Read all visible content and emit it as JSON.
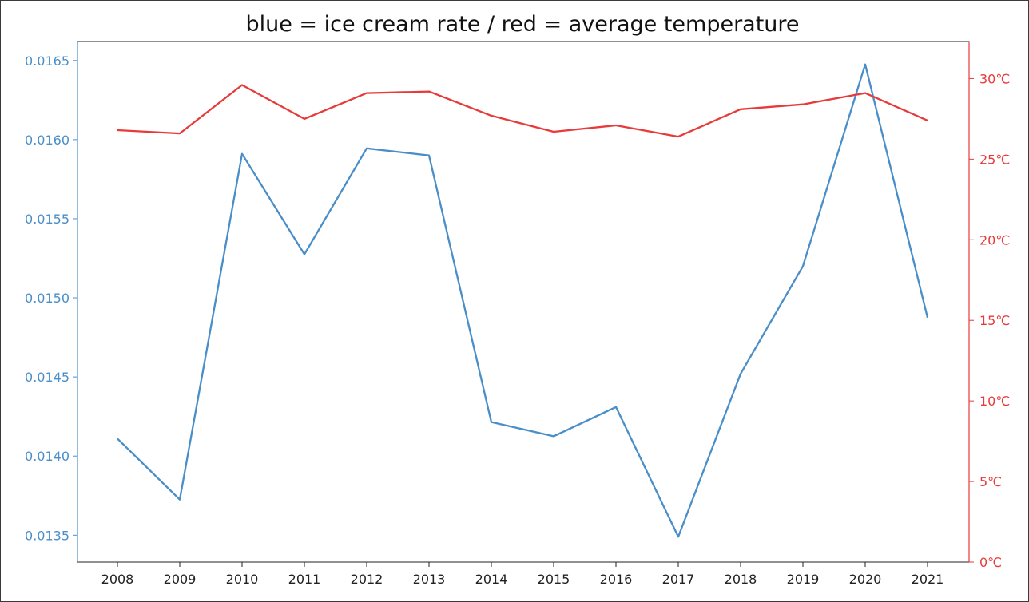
{
  "chart_data": {
    "type": "line",
    "title": "blue = ice cream rate / red = average temperature",
    "categories": [
      "2008",
      "2009",
      "2010",
      "2011",
      "2012",
      "2013",
      "2014",
      "2015",
      "2016",
      "2017",
      "2018",
      "2019",
      "2020",
      "2021"
    ],
    "series": [
      {
        "name": "ice cream rate",
        "axis": "left",
        "color": "#4a8ec8",
        "values": [
          0.01411,
          0.013725,
          0.01591,
          0.015275,
          0.015945,
          0.0159,
          0.014215,
          0.014125,
          0.01431,
          0.01349,
          0.01452,
          0.0152,
          0.016475,
          0.014875
        ]
      },
      {
        "name": "average temperature",
        "axis": "right",
        "color": "#e83a3a",
        "values": [
          26.8,
          26.6,
          29.6,
          27.5,
          29.1,
          29.2,
          27.7,
          26.7,
          27.1,
          26.4,
          28.1,
          28.4,
          29.1,
          27.4
        ]
      }
    ],
    "left_axis": {
      "color": "#4a8ec8",
      "ylim": [
        0.01333,
        0.01662
      ],
      "ticks": [
        0.0135,
        0.014,
        0.0145,
        0.015,
        0.0155,
        0.016,
        0.0165
      ],
      "tick_labels": [
        "0.0135",
        "0.0140",
        "0.0145",
        "0.0150",
        "0.0155",
        "0.0160",
        "0.0165"
      ]
    },
    "right_axis": {
      "color": "#e83a3a",
      "ylim": [
        0,
        32.3
      ],
      "ticks": [
        0,
        5,
        10,
        15,
        20,
        25,
        30
      ],
      "tick_labels": [
        "0℃",
        "5℃",
        "10℃",
        "15℃",
        "20℃",
        "25℃",
        "30℃"
      ]
    },
    "grid": false
  }
}
